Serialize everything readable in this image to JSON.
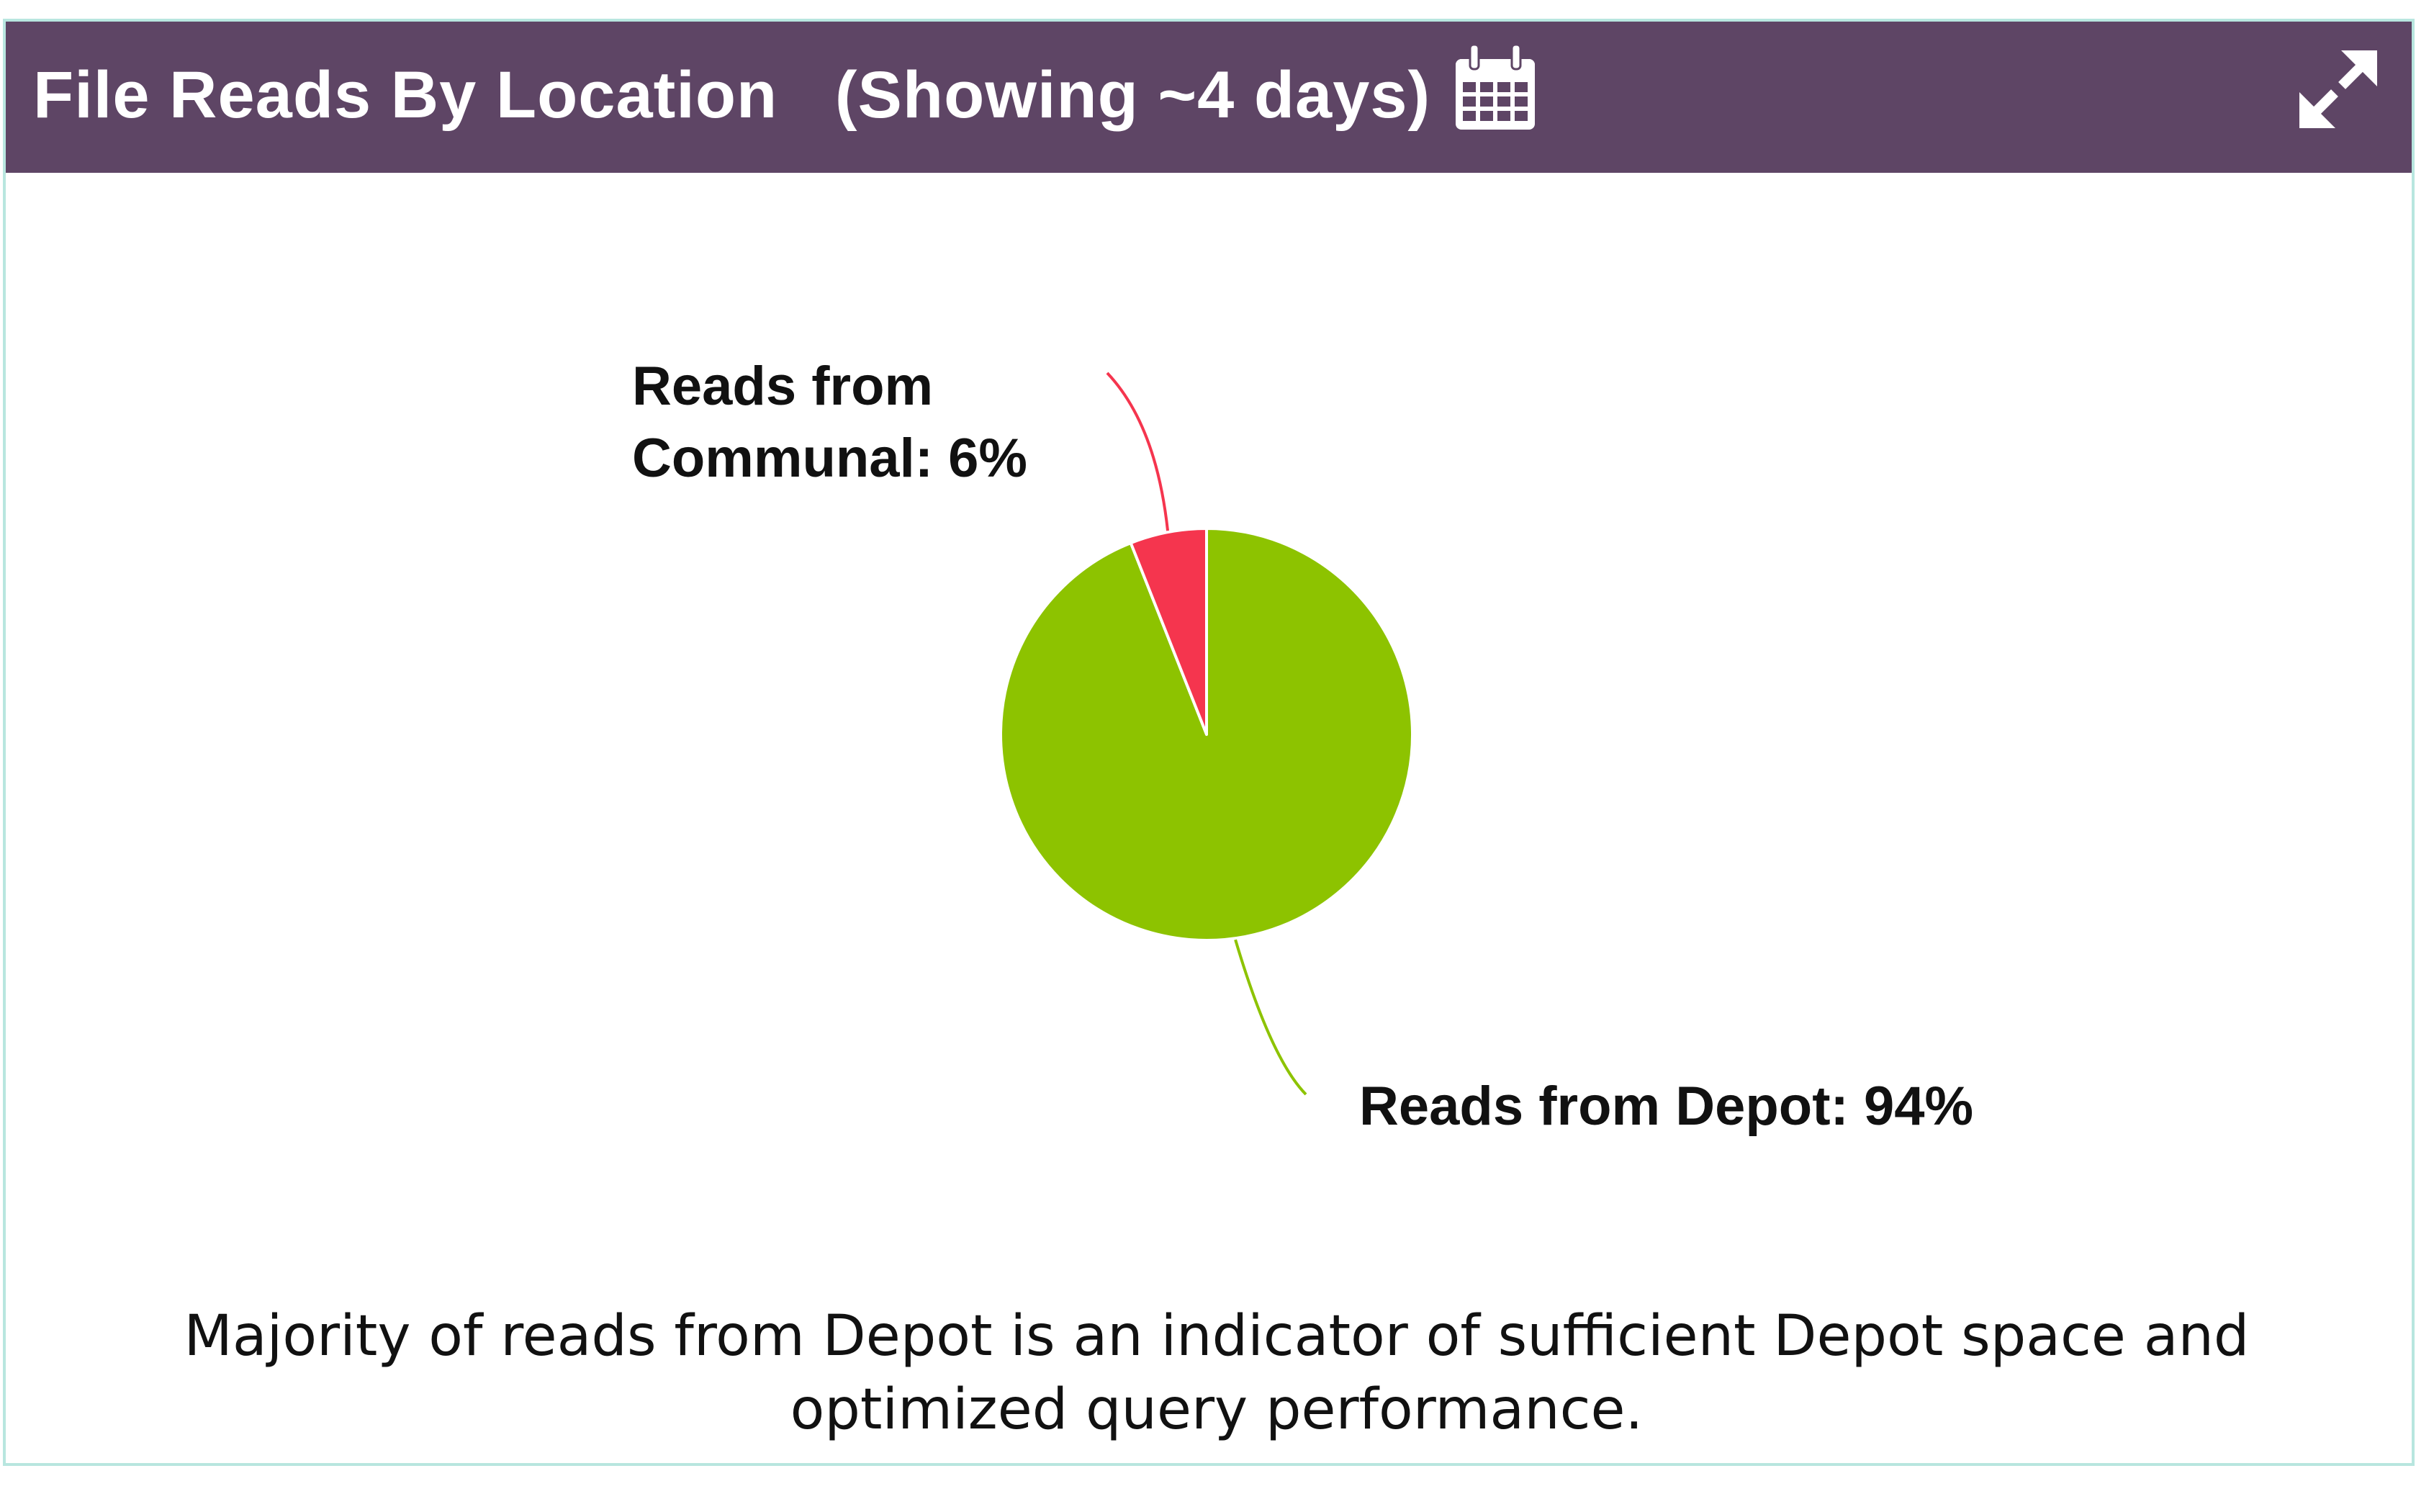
{
  "panel": {
    "title": "File Reads By Location",
    "subtitle": "(Showing ~4 days)",
    "calendar_icon": "calendar-icon",
    "expand_icon": "expand-arrows-icon",
    "header_color": "#5e4565"
  },
  "chart_data": {
    "type": "pie",
    "slices": [
      {
        "label": "Reads from Depot",
        "label_lines": [
          "Reads from Depot: 94%"
        ],
        "value": 94,
        "color": "#8dc300"
      },
      {
        "label": "Reads from Communal",
        "label_lines": [
          "Reads from",
          "Communal: 6%"
        ],
        "value": 6,
        "color": "#f5354e"
      }
    ]
  },
  "caption": "Majority of reads from Depot is an indicator of sufficient Depot space and optimized query performance."
}
